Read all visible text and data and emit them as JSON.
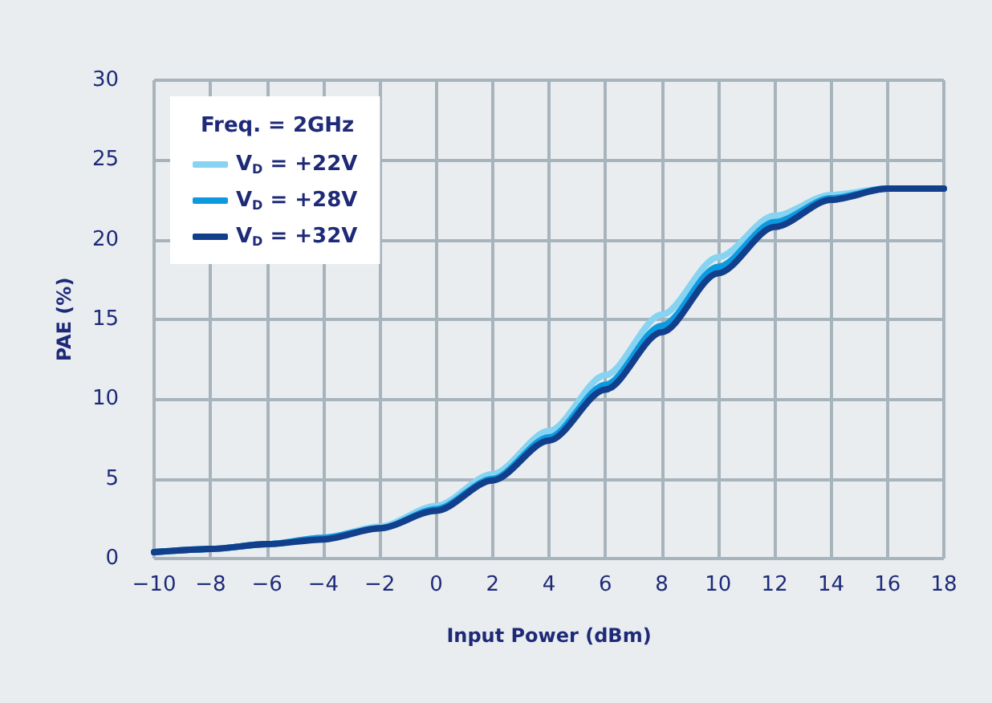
{
  "chart_data": {
    "type": "line",
    "xlabel": "Input Power (dBm)",
    "ylabel": "PAE (%)",
    "legend_title": "Freq. = 2GHz",
    "legend": "top left",
    "grid": true,
    "marker": "none",
    "x": [
      -10,
      -8,
      -6,
      -4,
      -2,
      0,
      2,
      4,
      6,
      8,
      10,
      12,
      14,
      16,
      18
    ],
    "xlim": [
      -10,
      18
    ],
    "xticks": [
      -10,
      -8,
      -6,
      -4,
      -2,
      0,
      2,
      4,
      6,
      8,
      10,
      12,
      14,
      16,
      18
    ],
    "ylim": [
      0,
      30
    ],
    "yticks": [
      0,
      5,
      10,
      15,
      20,
      25,
      30
    ],
    "series": [
      {
        "name": "V$_{D}$ = +22V",
        "color": "#87d3f2",
        "values": [
          0.4,
          0.6,
          0.9,
          1.3,
          2.0,
          3.3,
          5.3,
          8.0,
          11.5,
          15.3,
          18.9,
          21.5,
          22.8,
          23.2,
          23.2
        ]
      },
      {
        "name": "V$_{D}$ = +28V",
        "color": "#0b9ae0",
        "values": [
          0.4,
          0.6,
          0.9,
          1.3,
          1.9,
          3.1,
          5.0,
          7.6,
          10.9,
          14.6,
          18.3,
          21.1,
          22.6,
          23.2,
          23.2
        ]
      },
      {
        "name": "V$_{D}$ = +32V",
        "color": "#123f8c",
        "values": [
          0.4,
          0.6,
          0.9,
          1.2,
          1.9,
          3.0,
          4.9,
          7.4,
          10.6,
          14.2,
          17.9,
          20.8,
          22.5,
          23.2,
          23.2
        ]
      }
    ]
  }
}
